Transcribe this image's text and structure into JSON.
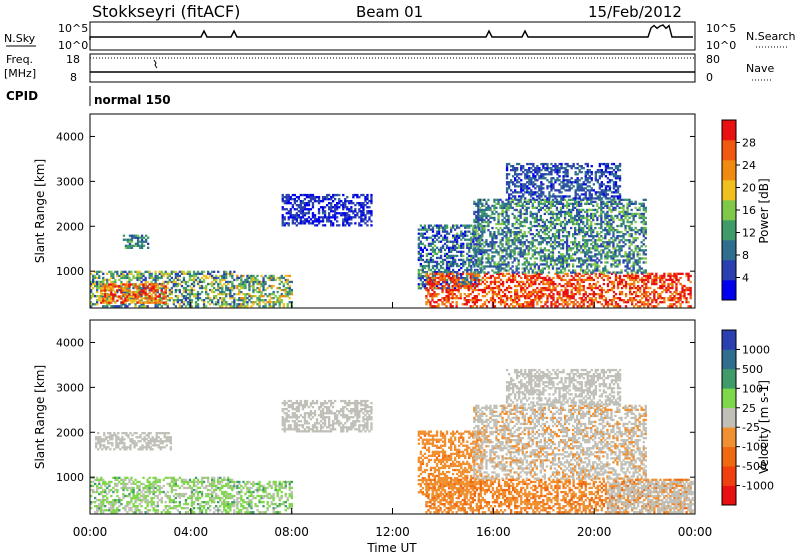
{
  "header": {
    "station": "Stokkseyri (fitACF)",
    "beam": "Beam 01",
    "date": "15/Feb/2012"
  },
  "top_panels": {
    "nsky_label": "N.Sky",
    "nsearch_label": "N.Search",
    "left_ticks": [
      "10^5",
      "10^0"
    ],
    "right_ticks": [
      "10^5",
      "10^0"
    ],
    "freq_label": "Freq.",
    "freq_unit": "[MHz]",
    "freq_ticks": [
      "18",
      "8"
    ],
    "nave_label": "Nave",
    "nave_ticks": [
      "80",
      "0"
    ],
    "cpid_label": "CPID",
    "cpid_value": "normal 150"
  },
  "x_axis": {
    "label": "Time UT",
    "ticks": [
      "00:00",
      "04:00",
      "08:00",
      "12:00",
      "16:00",
      "20:00",
      "00:00"
    ]
  },
  "colors": {
    "power_scale": [
      "#0000ee",
      "#2a3fb0",
      "#2f6e8e",
      "#3f9b6a",
      "#7fc84a",
      "#f0c020",
      "#f08a10",
      "#f05a10",
      "#e81010"
    ],
    "velocity_scale": [
      "#2a3fb0",
      "#2f6e8e",
      "#3f9b6a",
      "#7fd84a",
      "#c0c0b8",
      "#f09030",
      "#f06810",
      "#f04010",
      "#e81010"
    ]
  },
  "chart_data": [
    {
      "type": "heatmap",
      "title": "Power",
      "xlabel": "Time UT",
      "ylabel": "Slant Range [km]",
      "x_range_hours": [
        0,
        24
      ],
      "ylim": [
        180,
        4500
      ],
      "yticks": [
        1000,
        2000,
        3000,
        4000
      ],
      "colorbar": {
        "label": "Power [dB]",
        "ticks": [
          "4",
          "8",
          "12",
          "16",
          "20",
          "24",
          "28"
        ],
        "range": [
          0,
          30
        ]
      },
      "regions": [
        {
          "t0": 0.0,
          "t1": 5.7,
          "r0": 200,
          "r1": 1000,
          "value": 12,
          "noise": 8
        },
        {
          "t0": 0.4,
          "t1": 3.0,
          "r0": 280,
          "r1": 700,
          "value": 24,
          "noise": 6
        },
        {
          "t0": 1.3,
          "t1": 2.3,
          "r0": 1500,
          "r1": 1800,
          "value": 10,
          "noise": 4
        },
        {
          "t0": 5.8,
          "t1": 8.0,
          "r0": 200,
          "r1": 900,
          "value": 14,
          "noise": 8
        },
        {
          "t0": 7.6,
          "t1": 11.2,
          "r0": 2000,
          "r1": 2700,
          "value": 4,
          "noise": 3
        },
        {
          "t0": 13.0,
          "t1": 15.5,
          "r0": 600,
          "r1": 2000,
          "value": 8,
          "noise": 6
        },
        {
          "t0": 13.3,
          "t1": 23.8,
          "r0": 200,
          "r1": 950,
          "value": 26,
          "noise": 6
        },
        {
          "t0": 15.2,
          "t1": 22.0,
          "r0": 950,
          "r1": 2600,
          "value": 10,
          "noise": 6
        },
        {
          "t0": 16.5,
          "t1": 21.0,
          "r0": 2600,
          "r1": 3400,
          "value": 6,
          "noise": 4
        }
      ]
    },
    {
      "type": "heatmap",
      "title": "Velocity",
      "xlabel": "Time UT",
      "ylabel": "Slant Range [km]",
      "x_range_hours": [
        0,
        24
      ],
      "ylim": [
        180,
        4500
      ],
      "yticks": [
        1000,
        2000,
        3000,
        4000
      ],
      "colorbar": {
        "label": "Velocity [m s-1]",
        "ticks": [
          "1000",
          "500",
          "100",
          "25",
          "-25",
          "-100",
          "-500",
          "-1000"
        ],
        "range": [
          -1200,
          1200
        ]
      },
      "regions": [
        {
          "t0": 0.0,
          "t1": 5.7,
          "r0": 200,
          "r1": 1000,
          "value": 200,
          "noise": 250
        },
        {
          "t0": 0.2,
          "t1": 3.2,
          "r0": 1600,
          "r1": 2000,
          "value": 0,
          "noise": 10
        },
        {
          "t0": 5.8,
          "t1": 8.0,
          "r0": 200,
          "r1": 900,
          "value": 220,
          "noise": 250
        },
        {
          "t0": 7.6,
          "t1": 11.2,
          "r0": 2000,
          "r1": 2700,
          "value": 0,
          "noise": 15
        },
        {
          "t0": 13.0,
          "t1": 15.5,
          "r0": 600,
          "r1": 2000,
          "value": -300,
          "noise": 120
        },
        {
          "t0": 13.3,
          "t1": 23.8,
          "r0": 200,
          "r1": 950,
          "value": -320,
          "noise": 150
        },
        {
          "t0": 15.2,
          "t1": 22.0,
          "r0": 950,
          "r1": 2600,
          "value": -60,
          "noise": 140
        },
        {
          "t0": 16.5,
          "t1": 21.0,
          "r0": 2600,
          "r1": 3400,
          "value": 0,
          "noise": 20
        },
        {
          "t0": 20.5,
          "t1": 23.9,
          "r0": 200,
          "r1": 900,
          "value": 0,
          "noise": 20
        }
      ]
    }
  ]
}
